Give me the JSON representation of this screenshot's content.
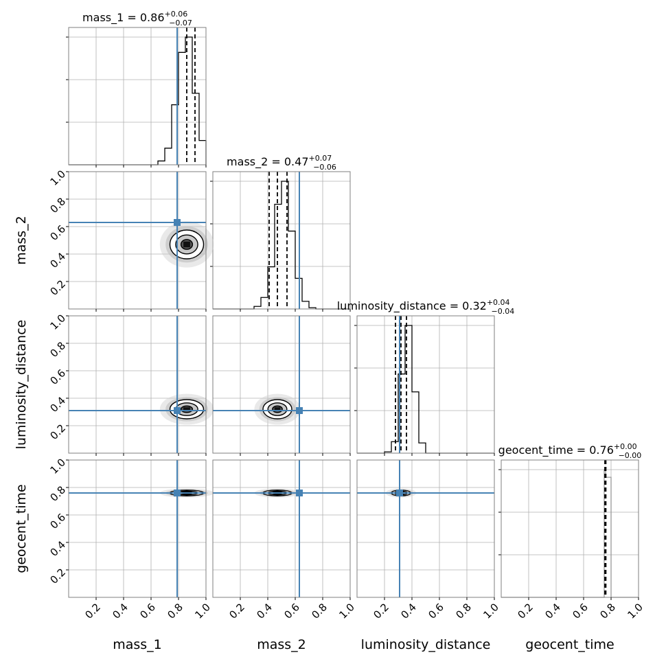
{
  "chart_data": {
    "type": "corner",
    "parameters": [
      "mass_1",
      "mass_2",
      "luminosity_distance",
      "geocent_time"
    ],
    "axis_labels": [
      "mass_1",
      "mass_2",
      "luminosity_distance",
      "geocent_time"
    ],
    "range": [
      0,
      1
    ],
    "tick_labels": [
      "0.2",
      "0.4",
      "0.6",
      "0.8",
      "1.0"
    ],
    "tick_values": [
      0.2,
      0.4,
      0.6,
      0.8,
      1.0
    ],
    "grid": true,
    "titles": [
      {
        "name": "mass_1",
        "text": "mass_1 = 0.86",
        "plus": "+0.06",
        "minus": "−0.07"
      },
      {
        "name": "mass_2",
        "text": "mass_2 = 0.47",
        "plus": "+0.07",
        "minus": "−0.06"
      },
      {
        "name": "luminosity_distance",
        "text": "luminosity_distance = 0.32",
        "plus": "+0.04",
        "minus": "−0.04"
      },
      {
        "name": "geocent_time",
        "text": "geocent_time = 0.76",
        "plus": "+0.00",
        "minus": "−0.00"
      }
    ],
    "injection": [
      0.79,
      0.63,
      0.31,
      0.76
    ],
    "quantiles": [
      [
        0.79,
        0.86,
        0.92
      ],
      [
        0.41,
        0.47,
        0.54
      ],
      [
        0.28,
        0.32,
        0.36
      ],
      [
        0.755,
        0.76,
        0.762
      ]
    ],
    "histograms": [
      {
        "edges": [
          0.0,
          0.05,
          0.1,
          0.15,
          0.2,
          0.25,
          0.3,
          0.35,
          0.4,
          0.45,
          0.5,
          0.55,
          0.6,
          0.65,
          0.7,
          0.75,
          0.8,
          0.85,
          0.9,
          0.95,
          1.0
        ],
        "counts": [
          0,
          0,
          0,
          0,
          0,
          0,
          0,
          0,
          0,
          0,
          0,
          0,
          0,
          3,
          13,
          47,
          88,
          100,
          56,
          19
        ]
      },
      {
        "edges": [
          0.0,
          0.05,
          0.1,
          0.15,
          0.2,
          0.25,
          0.3,
          0.35,
          0.4,
          0.45,
          0.5,
          0.55,
          0.6,
          0.65,
          0.7,
          0.75,
          0.8,
          0.85,
          0.9,
          0.95,
          1.0
        ],
        "counts": [
          0,
          0,
          0,
          0,
          0,
          0,
          2,
          9,
          33,
          82,
          100,
          61,
          24,
          6,
          1,
          0,
          0,
          0,
          0,
          0
        ]
      },
      {
        "edges": [
          0.0,
          0.05,
          0.1,
          0.15,
          0.2,
          0.25,
          0.3,
          0.35,
          0.4,
          0.45,
          0.5,
          0.55,
          0.6,
          0.65,
          0.7,
          0.75,
          0.8,
          0.85,
          0.9,
          0.95,
          1.0
        ],
        "counts": [
          0,
          0,
          0,
          0,
          1,
          9,
          62,
          100,
          48,
          8,
          0,
          0,
          0,
          0,
          0,
          0,
          0,
          0,
          0,
          0
        ]
      },
      {
        "edges": [
          0.0,
          0.75,
          0.76,
          0.8,
          1.0
        ],
        "counts": [
          0,
          100,
          94,
          0
        ]
      }
    ],
    "pair_centers": [
      {
        "row": 1,
        "col": 0,
        "x": 0.86,
        "y": 0.47
      },
      {
        "row": 2,
        "col": 0,
        "x": 0.86,
        "y": 0.32
      },
      {
        "row": 2,
        "col": 1,
        "x": 0.47,
        "y": 0.32
      },
      {
        "row": 3,
        "col": 0,
        "x": 0.86,
        "y": 0.76
      },
      {
        "row": 3,
        "col": 1,
        "x": 0.47,
        "y": 0.76
      },
      {
        "row": 3,
        "col": 2,
        "x": 0.32,
        "y": 0.76
      }
    ],
    "colors": {
      "injection": "#4682b4",
      "hist": "#000000",
      "grid": "#b0b0b0",
      "spine": "#7f7f7f"
    }
  }
}
